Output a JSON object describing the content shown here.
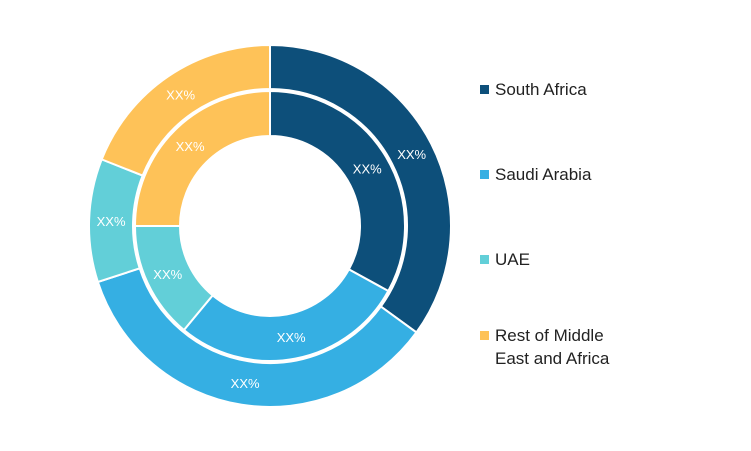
{
  "chart_data": {
    "type": "donut",
    "title": "",
    "categories": [
      "South Africa",
      "Saudi Arabia",
      "UAE",
      "Rest of Middle\nEast and Africa"
    ],
    "colors": [
      "#0d4f7a",
      "#35afe3",
      "#62cfd8",
      "#fec258"
    ],
    "series": [
      {
        "ring": "outer",
        "values": [
          35,
          35,
          11,
          19
        ],
        "labels": [
          "XX%",
          "XX%",
          "XX%",
          "XX%"
        ]
      },
      {
        "ring": "inner",
        "values": [
          33,
          28,
          14,
          25
        ],
        "labels": [
          "XX%",
          "XX%",
          "XX%",
          "XX%"
        ]
      }
    ],
    "legend_position": "right"
  }
}
